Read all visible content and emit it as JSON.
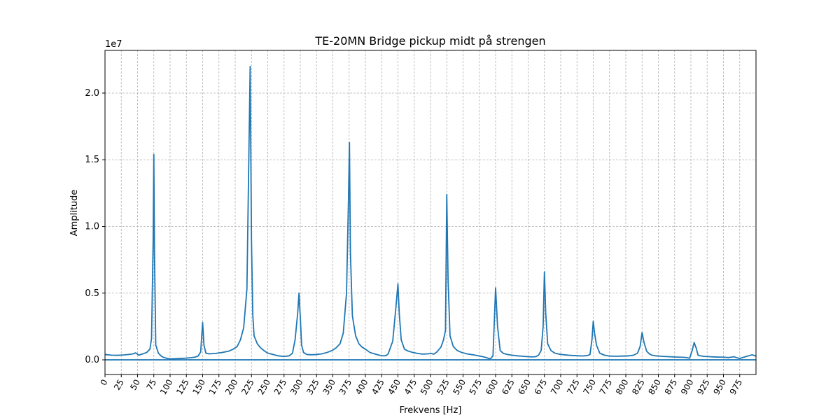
{
  "chart_data": {
    "type": "line",
    "title": "TE-20MN Bridge pickup midt på strengen",
    "xlabel": "Frekvens [Hz]",
    "ylabel": "Amplitude",
    "y_offset_label": "1e7",
    "xlim": [
      0,
      1000
    ],
    "ylim": [
      -1100000,
      23200000
    ],
    "grid": true,
    "x_tick_labels": [
      "0",
      "25",
      "50",
      "75",
      "100",
      "125",
      "150",
      "175",
      "200",
      "225",
      "250",
      "275",
      "300",
      "325",
      "350",
      "375",
      "400",
      "425",
      "450",
      "475",
      "500",
      "525",
      "550",
      "575",
      "600",
      "625",
      "650",
      "675",
      "700",
      "725",
      "750",
      "775",
      "800",
      "825",
      "850",
      "875",
      "900",
      "925",
      "950",
      "975"
    ],
    "y_tick_labels": [
      "0.0",
      "0.5",
      "1.0",
      "1.5",
      "2.0"
    ],
    "y_tick_values": [
      0,
      5000000,
      10000000,
      15000000,
      20000000
    ],
    "line_color": "#1f77b4",
    "series": [
      {
        "x": [
          0,
          10,
          20,
          30,
          40,
          43,
          47,
          52,
          58,
          64,
          69,
          71.5,
          74,
          75,
          76,
          78,
          82,
          87,
          92,
          97,
          102,
          112,
          122,
          132,
          138,
          143,
          147,
          150,
          152,
          155,
          160,
          170,
          180,
          190,
          197,
          203,
          208,
          213,
          218,
          223,
          225,
          227,
          229,
          234,
          239,
          244,
          250,
          258,
          266,
          275,
          283,
          288,
          292,
          296,
          298,
          300,
          302,
          305,
          310,
          317,
          325,
          333,
          341,
          349,
          355,
          361,
          366,
          371,
          374,
          375.5,
          377,
          380,
          385,
          390,
          395,
          400,
          407,
          414,
          421,
          428,
          432,
          435,
          442,
          447,
          450,
          452,
          455,
          460,
          466,
          473,
          480,
          488,
          496,
          501,
          505,
          510,
          516,
          520,
          523,
          525,
          527,
          530,
          535,
          541,
          548,
          556,
          565,
          574,
          582,
          587,
          590,
          593,
          596,
          600,
          603,
          607,
          612,
          618,
          625,
          633,
          641,
          649,
          656,
          662,
          666,
          670,
          673,
          675,
          677,
          680,
          685,
          691,
          698,
          705,
          713,
          720,
          727,
          734,
          741,
          745,
          748,
          750,
          752,
          755,
          760,
          767,
          775,
          785,
          795,
          805,
          812,
          818,
          822,
          825,
          828,
          832,
          836,
          840,
          846,
          853,
          860,
          868,
          876,
          884,
          892,
          898,
          902,
          905,
          908,
          911,
          915,
          920,
          930,
          940,
          950,
          958,
          962,
          966,
          970,
          975,
          980,
          985,
          990,
          994,
          998,
          1000
        ],
        "y": [
          400000,
          350000,
          340000,
          370000,
          420000,
          450000,
          520000,
          350000,
          450000,
          550000,
          800000,
          1600000,
          9000000,
          15400000,
          8000000,
          1100000,
          500000,
          250000,
          150000,
          90000,
          70000,
          90000,
          120000,
          160000,
          200000,
          280000,
          600000,
          2800000,
          1100000,
          500000,
          450000,
          480000,
          550000,
          650000,
          800000,
          1000000,
          1500000,
          2400000,
          5300000,
          22000000,
          9000000,
          3400000,
          1800000,
          1200000,
          900000,
          700000,
          500000,
          400000,
          300000,
          250000,
          300000,
          500000,
          1500000,
          3500000,
          5000000,
          3200000,
          1100000,
          550000,
          400000,
          380000,
          400000,
          450000,
          550000,
          700000,
          900000,
          1200000,
          2000000,
          5000000,
          12000000,
          16300000,
          8000000,
          3300000,
          1800000,
          1200000,
          950000,
          800000,
          550000,
          450000,
          350000,
          300000,
          320000,
          450000,
          1400000,
          4000000,
          5700000,
          3500000,
          1500000,
          800000,
          650000,
          550000,
          480000,
          430000,
          450000,
          480000,
          420000,
          600000,
          950000,
          1500000,
          2200000,
          12400000,
          6000000,
          1800000,
          1000000,
          700000,
          550000,
          450000,
          380000,
          300000,
          220000,
          150000,
          80000,
          120000,
          300000,
          5400000,
          2500000,
          700000,
          480000,
          400000,
          350000,
          300000,
          270000,
          240000,
          220000,
          240000,
          350000,
          700000,
          2500000,
          6600000,
          3500000,
          1200000,
          700000,
          500000,
          420000,
          380000,
          340000,
          320000,
          300000,
          290000,
          320000,
          400000,
          1500000,
          2900000,
          2000000,
          1100000,
          500000,
          350000,
          280000,
          270000,
          280000,
          300000,
          350000,
          500000,
          1000000,
          2050000,
          1300000,
          650000,
          450000,
          350000,
          300000,
          270000,
          250000,
          230000,
          210000,
          200000,
          180000,
          120000,
          700000,
          1300000,
          900000,
          350000,
          300000,
          260000,
          230000,
          210000,
          200000,
          170000,
          200000,
          230000,
          170000,
          100000,
          180000,
          250000,
          320000,
          380000,
          310000,
          280000
        ]
      },
      {
        "x": [
          0,
          1000
        ],
        "y": [
          0,
          0
        ]
      }
    ]
  }
}
